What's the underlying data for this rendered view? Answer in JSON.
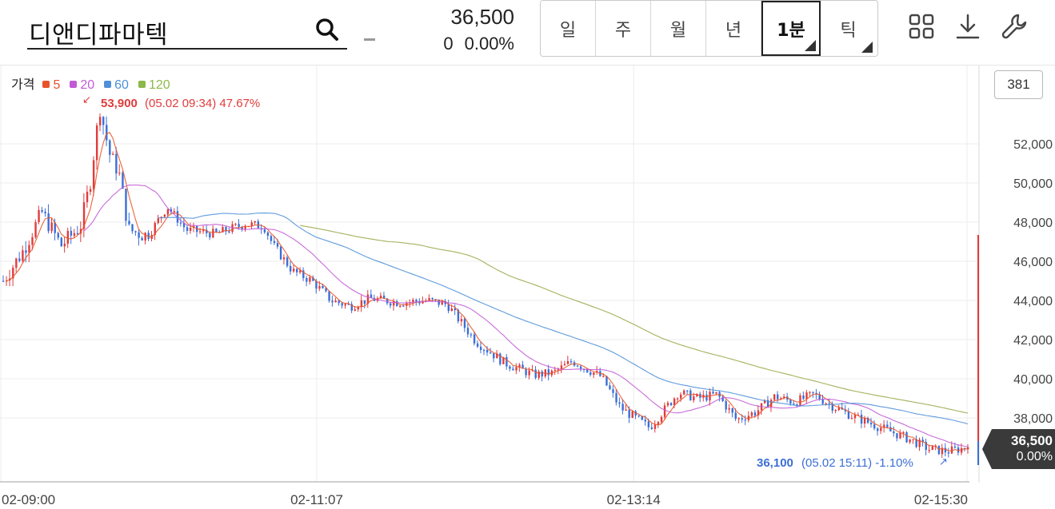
{
  "header": {
    "stock_name": "디앤디파마텍",
    "current_price": "36,500",
    "change": "0",
    "change_rate": "0.00%"
  },
  "periods": [
    {
      "label": "일",
      "active": false,
      "corner": false
    },
    {
      "label": "주",
      "active": false,
      "corner": false
    },
    {
      "label": "월",
      "active": false,
      "corner": false
    },
    {
      "label": "년",
      "active": false,
      "corner": false
    },
    {
      "label": "1분",
      "active": true,
      "corner": true
    },
    {
      "label": "틱",
      "active": false,
      "corner": true
    }
  ],
  "icons": [
    "search-icon",
    "grid-layout-icon",
    "download-icon",
    "wrench-icon"
  ],
  "legend": {
    "title": "가격",
    "items": [
      {
        "label": "5",
        "color": "#e8542a"
      },
      {
        "label": "20",
        "color": "#c25bd6"
      },
      {
        "label": "60",
        "color": "#4e90d8"
      },
      {
        "label": "120",
        "color": "#8db84a"
      }
    ]
  },
  "volume_badge": "381",
  "colors": {
    "up": "#e03c3c",
    "down": "#3b6fd6",
    "ma5": "#e8542a",
    "ma20": "#c25bd6",
    "ma60": "#4e90d8",
    "ma120": "#9aa84a",
    "price_tag": "#3a3a3a"
  },
  "chart_data": {
    "type": "line",
    "title": "",
    "xlabel": "",
    "ylabel": "",
    "ylim": [
      36000,
      54000
    ],
    "y_ticks": [
      52000,
      50000,
      48000,
      46000,
      44000,
      42000,
      40000,
      38000
    ],
    "y_tick_labels": [
      "52,000",
      "50,000",
      "48,000",
      "46,000",
      "44,000",
      "42,000",
      "40,000",
      "38,000"
    ],
    "x_tick_labels": [
      "02-09:00",
      "02-11:07",
      "02-13:14",
      "02-15:30"
    ],
    "x_tick_fractions": [
      0,
      0.327,
      0.655,
      1.0
    ],
    "price_series_approx": [
      [
        0,
        45000
      ],
      [
        0.02,
        46500
      ],
      [
        0.04,
        48500
      ],
      [
        0.06,
        46800
      ],
      [
        0.08,
        47800
      ],
      [
        0.09,
        50000
      ],
      [
        0.1,
        53900
      ],
      [
        0.11,
        51500
      ],
      [
        0.12,
        50500
      ],
      [
        0.13,
        47600
      ],
      [
        0.15,
        47300
      ],
      [
        0.17,
        48800
      ],
      [
        0.19,
        47600
      ],
      [
        0.22,
        47400
      ],
      [
        0.25,
        47900
      ],
      [
        0.27,
        47800
      ],
      [
        0.28,
        46800
      ],
      [
        0.3,
        45500
      ],
      [
        0.32,
        45000
      ],
      [
        0.34,
        44000
      ],
      [
        0.36,
        43700
      ],
      [
        0.38,
        44100
      ],
      [
        0.41,
        43900
      ],
      [
        0.44,
        44000
      ],
      [
        0.46,
        43800
      ],
      [
        0.49,
        41900
      ],
      [
        0.52,
        40800
      ],
      [
        0.55,
        40200
      ],
      [
        0.57,
        40300
      ],
      [
        0.59,
        40900
      ],
      [
        0.62,
        40100
      ],
      [
        0.64,
        38500
      ],
      [
        0.67,
        37500
      ],
      [
        0.7,
        39300
      ],
      [
        0.72,
        39000
      ],
      [
        0.74,
        39200
      ],
      [
        0.76,
        37900
      ],
      [
        0.78,
        38300
      ],
      [
        0.8,
        39100
      ],
      [
        0.82,
        38800
      ],
      [
        0.84,
        39200
      ],
      [
        0.86,
        38600
      ],
      [
        0.88,
        38100
      ],
      [
        0.9,
        37700
      ],
      [
        0.92,
        37300
      ],
      [
        0.94,
        36900
      ],
      [
        0.96,
        36400
      ],
      [
        0.98,
        36300
      ],
      [
        1.0,
        36500
      ]
    ],
    "high_annotation": {
      "text_price": "53,900",
      "text_meta": "(05.02 09:34) 47.67%"
    },
    "low_annotation": {
      "text_price": "36,100",
      "text_meta": "(05.02 15:11) -1.10%"
    },
    "last_price_tag": {
      "price": "36,500",
      "rate": "0.00%"
    }
  }
}
